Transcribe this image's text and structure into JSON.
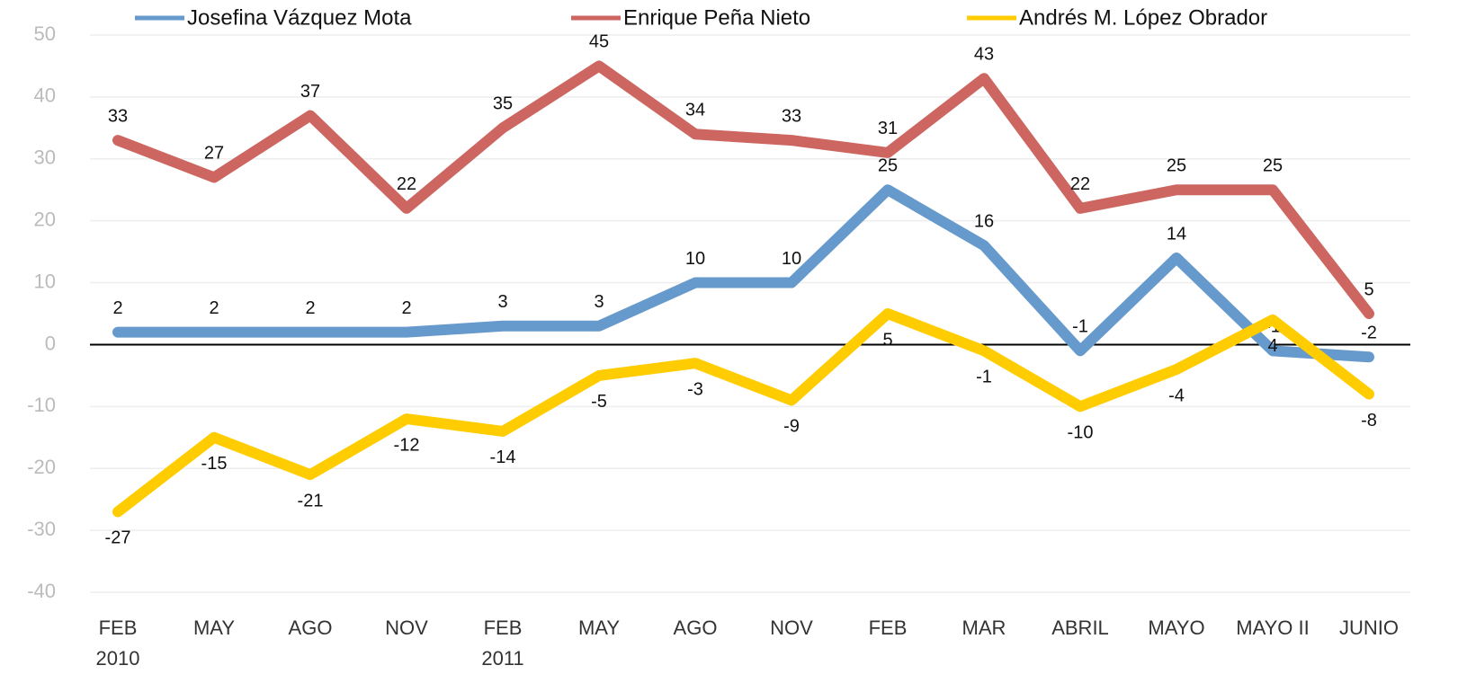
{
  "chart_data": {
    "type": "line",
    "categories": [
      "FEB\n2010",
      "MAY",
      "AGO",
      "NOV",
      "FEB\n2011",
      "MAY",
      "AGO",
      "NOV",
      "FEB",
      "MAR",
      "ABRIL",
      "MAYO",
      "MAYO II",
      "JUNIO"
    ],
    "series": [
      {
        "name": "Josefina Vázquez Mota",
        "color": "#6699cc",
        "values": [
          2,
          2,
          2,
          2,
          3,
          3,
          10,
          10,
          25,
          16,
          -1,
          14,
          -1,
          -2
        ]
      },
      {
        "name": "Enrique Peña Nieto",
        "color": "#cd6660",
        "values": [
          33,
          27,
          37,
          22,
          35,
          45,
          34,
          33,
          31,
          43,
          22,
          25,
          25,
          5
        ]
      },
      {
        "name": "Andrés M. López Obrador",
        "color": "#ffcc00",
        "values": [
          -27,
          -15,
          -21,
          -12,
          -14,
          -5,
          -3,
          -9,
          5,
          -1,
          -10,
          -4,
          4,
          -8
        ]
      }
    ],
    "ylim": [
      -40,
      50
    ],
    "yticks": [
      -40,
      -30,
      -20,
      -10,
      0,
      10,
      20,
      30,
      40,
      50
    ],
    "grid": true,
    "legend": "top"
  }
}
